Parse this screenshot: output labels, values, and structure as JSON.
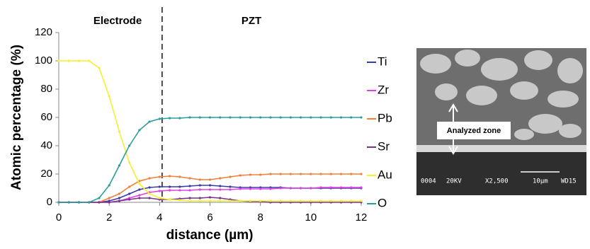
{
  "chart_data": {
    "type": "line",
    "xlabel": "distance (µm)",
    "ylabel": "Atomic percentage (%)",
    "x": [
      0,
      0.4,
      0.8,
      1.2,
      1.6,
      2,
      2.4,
      2.8,
      3.2,
      3.6,
      4,
      4.4,
      4.8,
      5.2,
      5.6,
      6,
      6.4,
      6.8,
      7.2,
      7.6,
      8,
      8.4,
      8.8,
      9.2,
      9.6,
      10,
      10.4,
      10.8,
      11.2,
      11.6,
      12
    ],
    "series": [
      {
        "name": "Ti",
        "color": "#3b3ba8",
        "values": [
          0,
          0,
          0,
          0,
          0,
          1,
          3,
          6,
          9,
          10.5,
          11,
          11,
          11,
          11.5,
          12,
          12,
          11.5,
          11,
          10.5,
          10.5,
          10.5,
          10.5,
          10.5,
          10,
          10,
          10,
          10,
          10,
          10,
          10,
          10
        ]
      },
      {
        "name": "Zr",
        "color": "#e040e0",
        "values": [
          0,
          0,
          0,
          0,
          0,
          0,
          1,
          3,
          5,
          7,
          8,
          8.5,
          8.5,
          8.5,
          9,
          9,
          9,
          9,
          9.5,
          9.5,
          9.5,
          9.5,
          10,
          10,
          10,
          10,
          10.5,
          10.5,
          10.5,
          10.5,
          10.5
        ]
      },
      {
        "name": "Pb",
        "color": "#f0803a",
        "values": [
          0,
          0,
          0,
          0,
          0,
          3,
          6,
          11,
          15,
          17,
          18,
          18.5,
          18,
          17,
          16,
          16,
          17,
          18,
          19,
          19.5,
          19.5,
          20,
          20,
          20,
          20,
          20,
          20,
          20,
          20,
          20,
          20
        ]
      },
      {
        "name": "Sr",
        "color": "#7b2f8f",
        "values": [
          0,
          0,
          0,
          0,
          0,
          0,
          1,
          2,
          3,
          3,
          2,
          2,
          2.5,
          3,
          3,
          3.5,
          3,
          2,
          1,
          0.5,
          0.5,
          0,
          0,
          0,
          0,
          0,
          0,
          0,
          0,
          0,
          0
        ]
      },
      {
        "name": "Au",
        "color": "#f2f230",
        "values": [
          100,
          100,
          100,
          100,
          95,
          75,
          50,
          28,
          13,
          6,
          3,
          2,
          1.5,
          1,
          1,
          1,
          1,
          1,
          1,
          1,
          1,
          1,
          1,
          1,
          1,
          1,
          1,
          1,
          1,
          1,
          1
        ]
      },
      {
        "name": "O",
        "color": "#2a9e9e",
        "values": [
          0,
          0,
          0,
          0,
          3,
          12,
          26,
          40,
          51,
          57,
          59,
          59.5,
          59.5,
          60,
          60,
          60,
          60,
          60,
          60,
          60,
          60,
          60,
          60,
          60,
          60,
          60,
          60,
          60,
          60,
          60,
          60
        ]
      }
    ],
    "xlim": [
      0,
      12
    ],
    "xticks": [
      0,
      2,
      4,
      6,
      8,
      10,
      12
    ],
    "ylim": [
      0,
      120
    ],
    "yticks": [
      0,
      20,
      40,
      60,
      80,
      100,
      120
    ],
    "divider": {
      "x": 4.1,
      "left_label": "Electrode",
      "right_label": "PZT"
    },
    "image": {
      "label": "Analyzed zone",
      "caption": [
        "0004",
        "20KV",
        "X2,500",
        "10µm",
        "WD15"
      ]
    }
  }
}
